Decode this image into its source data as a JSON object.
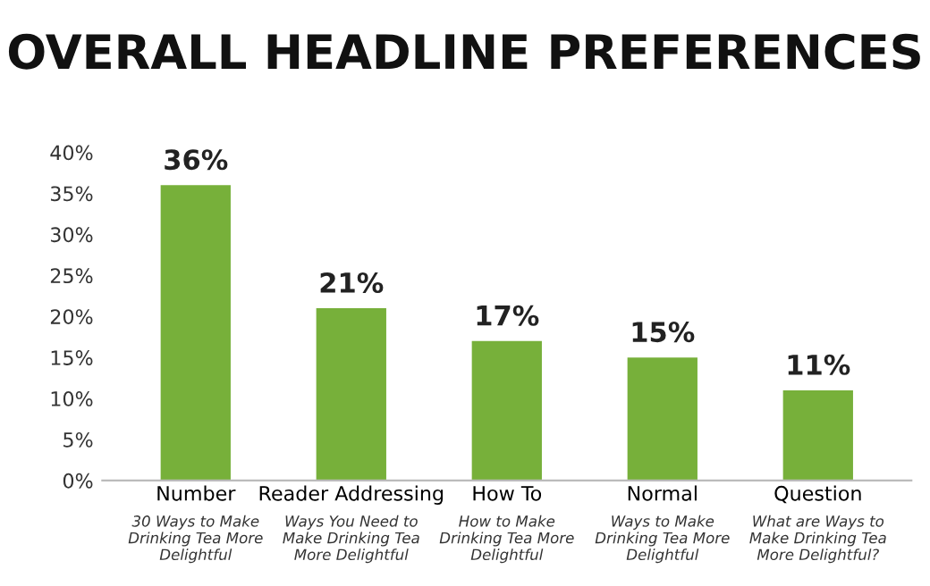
{
  "chart_data": {
    "type": "bar",
    "title": "OVERALL HEADLINE PREFERENCES",
    "categories": [
      "Number",
      "Reader Addressing",
      "How To",
      "Normal",
      "Question"
    ],
    "values": [
      36,
      21,
      17,
      15,
      11
    ],
    "value_labels": [
      "36%",
      "21%",
      "17%",
      "15%",
      "11%"
    ],
    "color": "#77b03a",
    "ylim": [
      0,
      40
    ],
    "yticks": [
      {
        "value": 0,
        "label": "0%"
      },
      {
        "value": 5,
        "label": "5%"
      },
      {
        "value": 10,
        "label": "10%"
      },
      {
        "value": 15,
        "label": "15%"
      },
      {
        "value": 20,
        "label": "20%"
      },
      {
        "value": 25,
        "label": "25%"
      },
      {
        "value": 30,
        "label": "30%"
      },
      {
        "value": 35,
        "label": "35%"
      },
      {
        "value": 40,
        "label": "40%"
      }
    ],
    "annotations": [
      "30 Ways to Make\nDrinking Tea More\nDelightful",
      "Ways You Need to\nMake Drinking Tea\nMore Delightful",
      "How to Make\nDrinking Tea More\nDelightful",
      "Ways to Make\nDrinking Tea More\nDelightful",
      "What are Ways to\nMake Drinking Tea\nMore Delightful?"
    ],
    "grid": false
  }
}
